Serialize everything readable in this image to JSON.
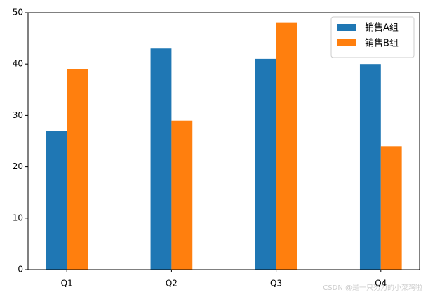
{
  "chart_data": {
    "type": "bar",
    "categories": [
      "Q1",
      "Q2",
      "Q3",
      "Q4"
    ],
    "series": [
      {
        "name": "销售A组",
        "color": "#1f77b4",
        "values": [
          27,
          43,
          41,
          40
        ]
      },
      {
        "name": "销售B组",
        "color": "#ff7f0e",
        "values": [
          39,
          29,
          48,
          24
        ]
      }
    ],
    "ylim": [
      0,
      50
    ],
    "yticks": [
      0,
      10,
      20,
      30,
      40,
      50
    ],
    "legend": "upper right",
    "watermark": "CSDN @是一只努力的小菜鸡啦"
  }
}
